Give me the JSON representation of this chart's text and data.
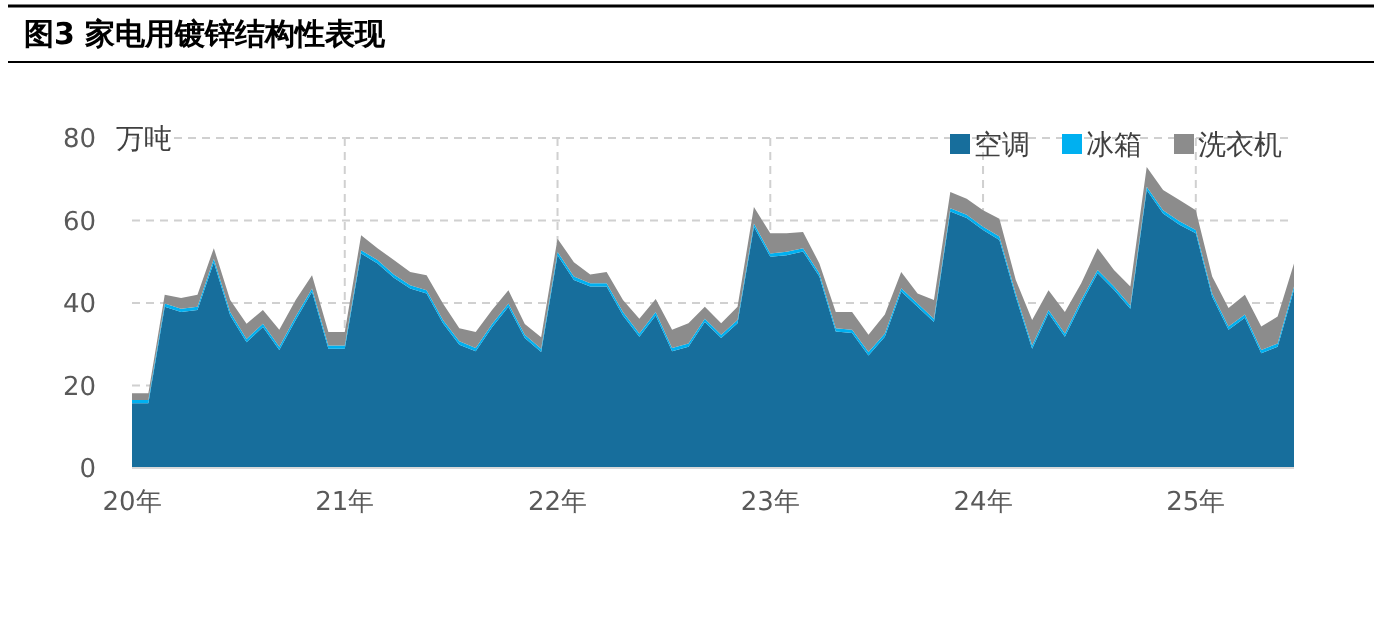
{
  "chart_data": {
    "type": "area",
    "stacked": true,
    "title": "图3 家电用镀锌结构性表现",
    "ylabel": "万吨",
    "categories": [
      "20年",
      null,
      null,
      null,
      null,
      null,
      null,
      null,
      null,
      null,
      null,
      null,
      null,
      "21年",
      null,
      null,
      null,
      null,
      null,
      null,
      null,
      null,
      null,
      null,
      null,
      null,
      "22年",
      null,
      null,
      null,
      null,
      null,
      null,
      null,
      null,
      null,
      null,
      null,
      null,
      "23年",
      null,
      null,
      null,
      null,
      null,
      null,
      null,
      null,
      null,
      null,
      null,
      null,
      "24年",
      null,
      null,
      null,
      null,
      null,
      null,
      null,
      null,
      null,
      null,
      null,
      null,
      "25年",
      null,
      null,
      null,
      null,
      null,
      null
    ],
    "series": [
      {
        "name": "空调",
        "color": "#176e9c",
        "values": [
          15.7,
          15.7,
          39.1,
          37.8,
          38.3,
          49.9,
          37.0,
          30.5,
          34.2,
          28.6,
          35.9,
          42.7,
          28.9,
          28.9,
          52.0,
          49.6,
          46.1,
          43.5,
          42.3,
          35.1,
          29.9,
          28.3,
          34.1,
          39.1,
          31.5,
          28.1,
          51.6,
          45.6,
          44.0,
          44.0,
          37.0,
          31.8,
          37.0,
          28.3,
          29.4,
          35.4,
          31.5,
          35.1,
          58.5,
          51.2,
          51.6,
          52.5,
          46.4,
          33.1,
          32.7,
          27.3,
          31.8,
          42.8,
          39.1,
          35.4,
          62.2,
          60.6,
          57.7,
          55.3,
          41.5,
          28.9,
          37.5,
          31.8,
          39.9,
          47.2,
          43.2,
          38.6,
          67.4,
          61.7,
          59.0,
          56.9,
          41.5,
          33.5,
          36.4,
          27.8,
          29.4,
          43.2
        ]
      },
      {
        "name": "冰箱",
        "color": "#00b0f0",
        "values": [
          0.8,
          0.8,
          0.8,
          0.8,
          0.8,
          0.8,
          0.8,
          0.8,
          0.8,
          0.8,
          0.8,
          0.8,
          0.8,
          0.8,
          0.8,
          0.8,
          0.8,
          0.8,
          0.8,
          0.8,
          0.8,
          0.8,
          0.8,
          0.8,
          0.8,
          0.8,
          0.8,
          0.8,
          0.8,
          0.8,
          0.8,
          0.8,
          0.8,
          0.8,
          0.8,
          0.8,
          0.8,
          0.8,
          0.8,
          0.8,
          0.8,
          0.8,
          0.8,
          0.8,
          0.8,
          0.8,
          0.8,
          0.8,
          0.8,
          0.8,
          0.8,
          0.8,
          0.8,
          0.8,
          0.8,
          0.8,
          0.8,
          0.8,
          0.8,
          0.8,
          0.8,
          0.8,
          0.8,
          0.8,
          0.8,
          0.8,
          0.8,
          0.8,
          0.8,
          0.8,
          0.8,
          0.8
        ]
      },
      {
        "name": "洗衣机",
        "color": "#8c8c8c",
        "values": [
          1.6,
          1.6,
          2.1,
          2.6,
          2.9,
          2.6,
          2.9,
          3.7,
          3.3,
          4.1,
          4.0,
          3.2,
          3.3,
          3.3,
          3.6,
          2.9,
          3.5,
          3.2,
          3.6,
          4.0,
          3.2,
          3.9,
          3.4,
          3.2,
          2.6,
          2.8,
          3.2,
          3.5,
          2.1,
          2.7,
          2.9,
          3.6,
          3.2,
          4.4,
          4.9,
          2.9,
          2.8,
          3.2,
          4.0,
          4.9,
          4.5,
          3.9,
          2.4,
          3.9,
          4.3,
          4.2,
          4.6,
          3.9,
          2.4,
          4.5,
          3.9,
          3.9,
          4.0,
          4.3,
          3.3,
          6.2,
          4.8,
          5.2,
          4.1,
          5.3,
          4.0,
          4.6,
          4.8,
          4.9,
          5.2,
          4.8,
          4.1,
          4.5,
          4.8,
          5.7,
          6.5,
          5.6
        ]
      }
    ],
    "ylim": [
      0,
      80
    ],
    "yticks": [
      0,
      20,
      40,
      60,
      80
    ],
    "grid": true,
    "legend": "top right"
  }
}
